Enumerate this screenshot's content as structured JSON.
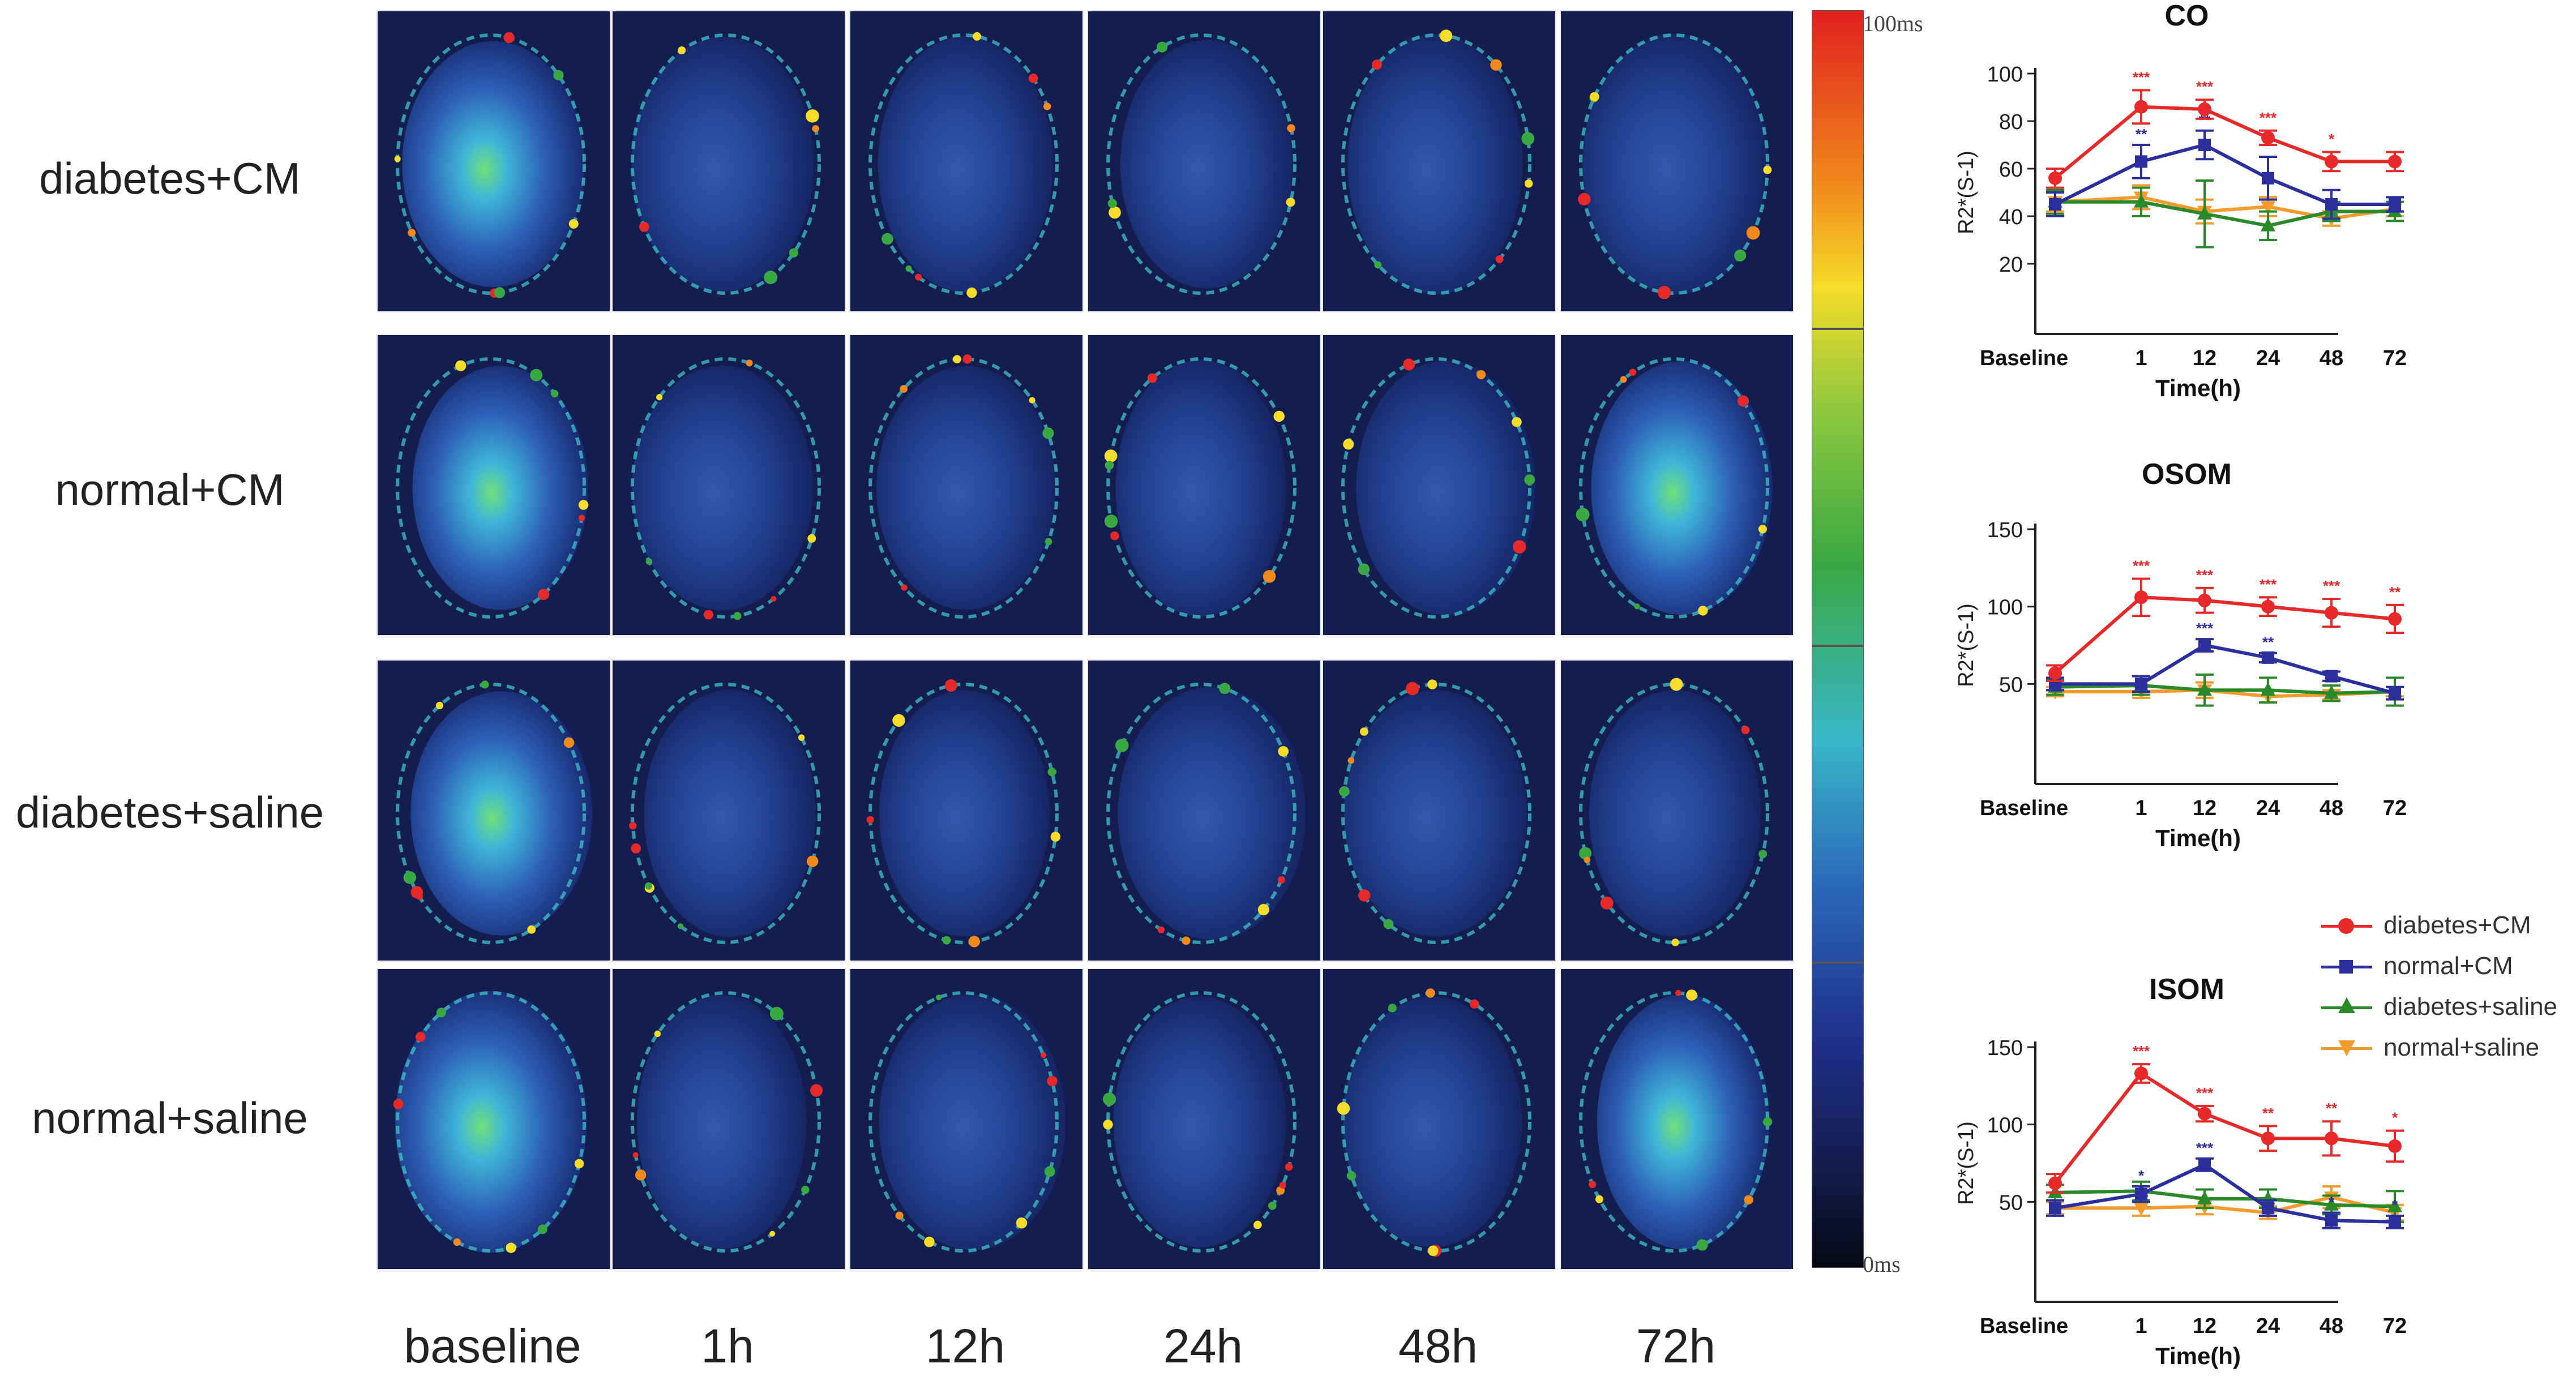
{
  "rows": [
    "diabetes+CM",
    "normal+CM",
    "diabetes+saline",
    "normal+saline"
  ],
  "columns": [
    "baseline",
    "1h",
    "12h",
    "24h",
    "48h",
    "72h"
  ],
  "colorbar": {
    "top_label": "100ms",
    "bottom_label": "0ms"
  },
  "legend": [
    {
      "label": "diabetes+CM",
      "color": "#e8292a",
      "marker": "circle"
    },
    {
      "label": "normal+CM",
      "color": "#2b2f9e",
      "marker": "square"
    },
    {
      "label": "diabetes+saline",
      "color": "#2a8a2a",
      "marker": "triangle-up"
    },
    {
      "label": "normal+saline",
      "color": "#f39b2c",
      "marker": "triangle-down"
    }
  ],
  "chart_data": [
    {
      "type": "line",
      "title": "CO",
      "xlabel": "Time(h)",
      "ylabel": "R2*(S-1)",
      "categories": [
        "Baseline",
        "1",
        "12",
        "24",
        "48",
        "72"
      ],
      "ylim": [
        0,
        100
      ],
      "yticks": [
        20,
        40,
        60,
        80,
        100
      ],
      "series": [
        {
          "name": "diabetes+CM",
          "values": [
            56,
            86,
            85,
            73,
            63,
            63
          ],
          "errors": [
            4,
            7,
            4,
            3,
            4,
            4
          ],
          "stars": [
            "",
            "***",
            "***",
            "***",
            "*",
            ""
          ]
        },
        {
          "name": "normal+CM",
          "values": [
            45,
            63,
            70,
            56,
            45,
            45
          ],
          "errors": [
            5,
            7,
            6,
            9,
            6,
            3
          ],
          "stars": [
            "",
            "**",
            "**",
            "*",
            "",
            ""
          ]
        },
        {
          "name": "diabetes+saline",
          "values": [
            46,
            46,
            41,
            36,
            42,
            42
          ],
          "errors": [
            5,
            6,
            14,
            6,
            4,
            4
          ],
          "stars": [
            "",
            "",
            "",
            "",
            "",
            ""
          ]
        },
        {
          "name": "normal+saline",
          "values": [
            46,
            48,
            42,
            44,
            39,
            43
          ],
          "errors": [
            4,
            5,
            5,
            4,
            3,
            3
          ],
          "stars": [
            "",
            "",
            "",
            "",
            "",
            ""
          ]
        }
      ]
    },
    {
      "type": "line",
      "title": "OSOM",
      "xlabel": "Time(h)",
      "ylabel": "R2*(S-1)",
      "categories": [
        "Baseline",
        "1",
        "12",
        "24",
        "48",
        "72"
      ],
      "ylim": [
        0,
        150
      ],
      "yticks": [
        50,
        100,
        150
      ],
      "series": [
        {
          "name": "diabetes+CM",
          "values": [
            57,
            106,
            104,
            100,
            96,
            92
          ],
          "errors": [
            5,
            12,
            8,
            6,
            9,
            9
          ],
          "stars": [
            "",
            "***",
            "***",
            "***",
            "***",
            "**"
          ]
        },
        {
          "name": "normal+CM",
          "values": [
            50,
            50,
            75,
            67,
            55,
            44
          ],
          "errors": [
            4,
            5,
            4,
            3,
            3,
            4
          ],
          "stars": [
            "",
            "",
            "***",
            "**",
            "",
            ""
          ]
        },
        {
          "name": "diabetes+saline",
          "values": [
            48,
            49,
            46,
            46,
            44,
            45
          ],
          "errors": [
            5,
            6,
            10,
            8,
            5,
            9
          ],
          "stars": [
            "",
            "",
            "",
            "",
            "",
            ""
          ]
        },
        {
          "name": "normal+saline",
          "values": [
            45,
            45,
            46,
            42,
            43,
            45
          ],
          "errors": [
            3,
            4,
            5,
            4,
            3,
            3
          ],
          "stars": [
            "",
            "",
            "",
            "",
            "",
            ""
          ]
        }
      ]
    },
    {
      "type": "line",
      "title": "ISOM",
      "xlabel": "Time(h)",
      "ylabel": "R2*(S-1)",
      "categories": [
        "Baseline",
        "1",
        "12",
        "24",
        "48",
        "72"
      ],
      "ylim": [
        0,
        150
      ],
      "yticks": [
        50,
        100,
        150
      ],
      "series": [
        {
          "name": "diabetes+CM",
          "values": [
            62,
            133,
            107,
            91,
            91,
            86
          ],
          "errors": [
            6,
            6,
            5,
            8,
            11,
            10
          ],
          "stars": [
            "",
            "***",
            "***",
            "**",
            "**",
            "*"
          ]
        },
        {
          "name": "normal+CM",
          "values": [
            46,
            55,
            74,
            46,
            38,
            37
          ],
          "errors": [
            5,
            5,
            4,
            5,
            5,
            4
          ],
          "stars": [
            "",
            "*",
            "***",
            "",
            "*",
            "*"
          ]
        },
        {
          "name": "diabetes+saline",
          "values": [
            56,
            57,
            52,
            52,
            48,
            47
          ],
          "errors": [
            5,
            6,
            6,
            6,
            6,
            10
          ],
          "stars": [
            "",
            "",
            "",
            "",
            "",
            ""
          ]
        },
        {
          "name": "normal+saline",
          "values": [
            46,
            46,
            47,
            43,
            53,
            43
          ],
          "errors": [
            4,
            5,
            5,
            4,
            7,
            5
          ],
          "stars": [
            "",
            "",
            "",
            "",
            "",
            ""
          ]
        }
      ]
    }
  ]
}
